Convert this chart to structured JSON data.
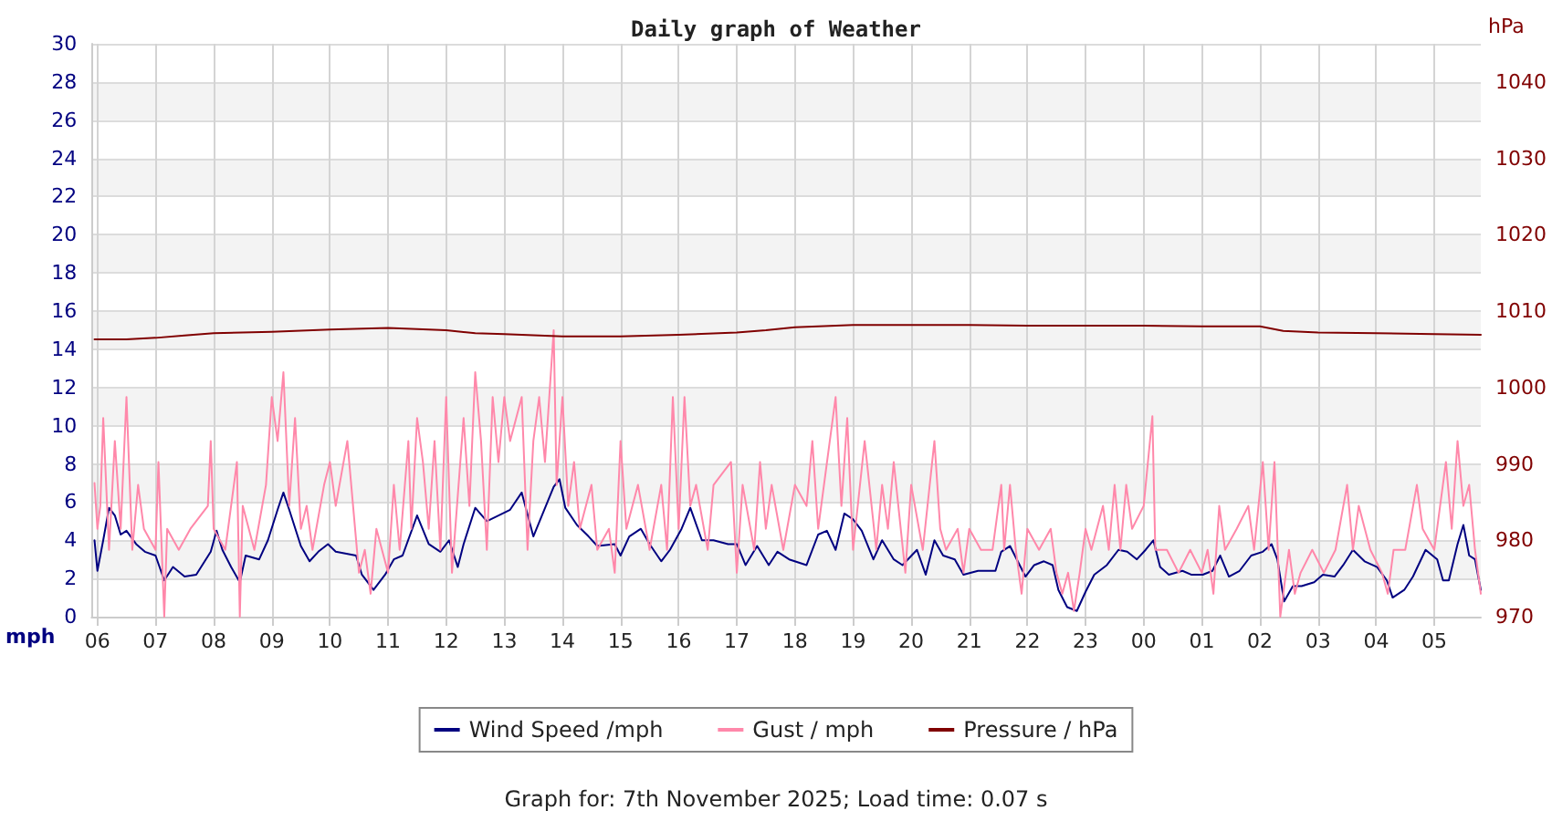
{
  "chart_data": {
    "type": "line",
    "title": "Daily graph of Weather",
    "ylabel": "mph",
    "y2label": "hPa",
    "annotations": [
      "Graph for: 7th November 2025; Load time: 0.07 s"
    ],
    "xlim": [
      "2025-11-06T05:54",
      "2025-11-07T05:48"
    ],
    "xticks": [
      {
        "value": "2025-11-06T06:00",
        "label": "06"
      },
      {
        "value": "2025-11-06T07:00",
        "label": "07"
      },
      {
        "value": "2025-11-06T08:00",
        "label": "08"
      },
      {
        "value": "2025-11-06T09:00",
        "label": "09"
      },
      {
        "value": "2025-11-06T10:00",
        "label": "10"
      },
      {
        "value": "2025-11-06T11:00",
        "label": "11"
      },
      {
        "value": "2025-11-06T12:00",
        "label": "12"
      },
      {
        "value": "2025-11-06T13:00",
        "label": "13"
      },
      {
        "value": "2025-11-06T14:00",
        "label": "14"
      },
      {
        "value": "2025-11-06T15:00",
        "label": "15"
      },
      {
        "value": "2025-11-06T16:00",
        "label": "16"
      },
      {
        "value": "2025-11-06T17:00",
        "label": "17"
      },
      {
        "value": "2025-11-06T18:00",
        "label": "18"
      },
      {
        "value": "2025-11-06T19:00",
        "label": "19"
      },
      {
        "value": "2025-11-06T20:00",
        "label": "20"
      },
      {
        "value": "2025-11-06T21:00",
        "label": "21"
      },
      {
        "value": "2025-11-06T22:00",
        "label": "22"
      },
      {
        "value": "2025-11-06T23:00",
        "label": "23"
      },
      {
        "value": "2025-11-07T00:00",
        "label": "00"
      },
      {
        "value": "2025-11-07T01:00",
        "label": "01"
      },
      {
        "value": "2025-11-07T02:00",
        "label": "02"
      },
      {
        "value": "2025-11-07T03:00",
        "label": "03"
      },
      {
        "value": "2025-11-07T04:00",
        "label": "04"
      },
      {
        "value": "2025-11-07T05:00",
        "label": "05"
      }
    ],
    "ylim": [
      0,
      30
    ],
    "yticks": [
      0,
      2,
      4,
      6,
      8,
      10,
      12,
      14,
      16,
      18,
      20,
      22,
      24,
      26,
      28,
      30
    ],
    "y2lim": [
      970,
      1045
    ],
    "y2ticks": [
      970,
      980,
      990,
      1000,
      1010,
      1020,
      1030,
      1040
    ],
    "grid": true,
    "legend": "bottom",
    "marker": "none",
    "line_style": "solid",
    "series": [
      {
        "name": "Wind Speed /mph",
        "color": "#000080",
        "x": [
          "2025-11-06T05:57",
          "2025-11-06T06:00",
          "2025-11-06T06:06",
          "2025-11-06T06:12",
          "2025-11-06T06:18",
          "2025-11-06T06:24",
          "2025-11-06T06:30",
          "2025-11-06T06:40",
          "2025-11-06T06:49",
          "2025-11-06T07:00",
          "2025-11-06T07:09",
          "2025-11-06T07:18",
          "2025-11-06T07:30",
          "2025-11-06T07:42",
          "2025-11-06T07:57",
          "2025-11-06T08:03",
          "2025-11-06T08:09",
          "2025-11-06T08:18",
          "2025-11-06T08:27",
          "2025-11-06T08:33",
          "2025-11-06T08:47",
          "2025-11-06T08:56",
          "2025-11-06T09:06",
          "2025-11-06T09:12",
          "2025-11-06T09:18",
          "2025-11-06T09:30",
          "2025-11-06T09:39",
          "2025-11-06T09:48",
          "2025-11-06T09:58",
          "2025-11-06T10:06",
          "2025-11-06T10:27",
          "2025-11-06T10:33",
          "2025-11-06T10:45",
          "2025-11-06T10:57",
          "2025-11-06T11:06",
          "2025-11-06T11:15",
          "2025-11-06T11:30",
          "2025-11-06T11:42",
          "2025-11-06T11:54",
          "2025-11-06T12:03",
          "2025-11-06T12:12",
          "2025-11-06T12:18",
          "2025-11-06T12:30",
          "2025-11-06T12:42",
          "2025-11-06T12:54",
          "2025-11-06T13:06",
          "2025-11-06T13:18",
          "2025-11-06T13:30",
          "2025-11-06T13:51",
          "2025-11-06T13:57",
          "2025-11-06T14:03",
          "2025-11-06T14:15",
          "2025-11-06T14:27",
          "2025-11-06T14:36",
          "2025-11-06T14:54",
          "2025-11-06T15:00",
          "2025-11-06T15:09",
          "2025-11-06T15:21",
          "2025-11-06T15:30",
          "2025-11-06T15:42",
          "2025-11-06T15:51",
          "2025-11-06T16:03",
          "2025-11-06T16:12",
          "2025-11-06T16:24",
          "2025-11-06T16:36",
          "2025-11-06T16:51",
          "2025-11-06T17:00",
          "2025-11-06T17:09",
          "2025-11-06T17:21",
          "2025-11-06T17:33",
          "2025-11-06T17:42",
          "2025-11-06T17:54",
          "2025-11-06T18:12",
          "2025-11-06T18:24",
          "2025-11-06T18:33",
          "2025-11-06T18:42",
          "2025-11-06T18:51",
          "2025-11-06T19:00",
          "2025-11-06T19:09",
          "2025-11-06T19:21",
          "2025-11-06T19:30",
          "2025-11-06T19:42",
          "2025-11-06T19:51",
          "2025-11-06T20:06",
          "2025-11-06T20:15",
          "2025-11-06T20:24",
          "2025-11-06T20:33",
          "2025-11-06T20:45",
          "2025-11-06T20:54",
          "2025-11-06T21:09",
          "2025-11-06T21:27",
          "2025-11-06T21:33",
          "2025-11-06T21:42",
          "2025-11-06T21:52",
          "2025-11-06T21:58",
          "2025-11-06T22:07",
          "2025-11-06T22:17",
          "2025-11-06T22:26",
          "2025-11-06T22:32",
          "2025-11-06T22:41",
          "2025-11-06T22:51",
          "2025-11-06T23:00",
          "2025-11-06T23:09",
          "2025-11-06T23:22",
          "2025-11-06T23:34",
          "2025-11-06T23:43",
          "2025-11-06T23:53",
          "2025-11-07T00:02",
          "2025-11-07T00:10",
          "2025-11-07T00:17",
          "2025-11-07T00:26",
          "2025-11-07T00:40",
          "2025-11-07T00:49",
          "2025-11-07T01:01",
          "2025-11-07T01:11",
          "2025-11-07T01:19",
          "2025-11-07T01:28",
          "2025-11-07T01:39",
          "2025-11-07T01:51",
          "2025-11-07T02:03",
          "2025-11-07T02:12",
          "2025-11-07T02:18",
          "2025-11-07T02:25",
          "2025-11-07T02:34",
          "2025-11-07T02:43",
          "2025-11-07T02:56",
          "2025-11-07T03:05",
          "2025-11-07T03:17",
          "2025-11-07T03:26",
          "2025-11-07T03:36",
          "2025-11-07T03:48",
          "2025-11-07T04:01",
          "2025-11-07T04:11",
          "2025-11-07T04:17",
          "2025-11-07T04:29",
          "2025-11-07T04:38",
          "2025-11-07T04:51",
          "2025-11-07T05:03",
          "2025-11-07T05:09",
          "2025-11-07T05:15",
          "2025-11-07T05:24",
          "2025-11-07T05:30",
          "2025-11-07T05:36",
          "2025-11-07T05:42",
          "2025-11-07T05:48"
        ],
        "values": [
          4.0,
          2.4,
          4.0,
          5.7,
          5.3,
          4.3,
          4.5,
          3.8,
          3.4,
          3.2,
          1.9,
          2.6,
          2.1,
          2.2,
          3.4,
          4.5,
          3.5,
          2.6,
          1.8,
          3.2,
          3.0,
          4.0,
          5.6,
          6.5,
          5.6,
          3.7,
          2.9,
          3.4,
          3.8,
          3.4,
          3.2,
          2.2,
          1.4,
          2.2,
          3.0,
          3.2,
          5.3,
          3.8,
          3.4,
          4.0,
          2.6,
          3.8,
          5.7,
          5.0,
          5.3,
          5.6,
          6.5,
          4.2,
          6.8,
          7.2,
          5.7,
          4.8,
          4.2,
          3.7,
          3.8,
          3.2,
          4.2,
          4.6,
          3.8,
          2.9,
          3.5,
          4.6,
          5.7,
          4.0,
          4.0,
          3.8,
          3.8,
          2.7,
          3.7,
          2.7,
          3.4,
          3.0,
          2.7,
          4.3,
          4.5,
          3.5,
          5.4,
          5.1,
          4.5,
          3.0,
          4.0,
          3.0,
          2.7,
          3.5,
          2.2,
          4.0,
          3.2,
          3.0,
          2.2,
          2.4,
          2.4,
          3.4,
          3.7,
          2.7,
          2.1,
          2.7,
          2.9,
          2.7,
          1.4,
          0.5,
          0.3,
          1.3,
          2.2,
          2.7,
          3.5,
          3.4,
          3.0,
          3.5,
          4.0,
          2.6,
          2.2,
          2.4,
          2.2,
          2.2,
          2.4,
          3.2,
          2.1,
          2.4,
          3.2,
          3.4,
          3.8,
          3.0,
          0.8,
          1.6,
          1.6,
          1.8,
          2.2,
          2.1,
          2.7,
          3.5,
          2.9,
          2.6,
          1.9,
          1.0,
          1.4,
          2.1,
          3.5,
          3.0,
          1.9,
          1.9,
          3.8,
          4.8,
          3.2,
          3.0,
          1.4
        ]
      },
      {
        "name": "Gust / mph",
        "color": "#ff88aa",
        "x": [
          "2025-11-06T05:57",
          "2025-11-06T06:00",
          "2025-11-06T06:03",
          "2025-11-06T06:06",
          "2025-11-06T06:12",
          "2025-11-06T06:18",
          "2025-11-06T06:24",
          "2025-11-06T06:30",
          "2025-11-06T06:36",
          "2025-11-06T06:42",
          "2025-11-06T06:48",
          "2025-11-06T07:00",
          "2025-11-06T07:03",
          "2025-11-06T07:09",
          "2025-11-06T07:12",
          "2025-11-06T07:24",
          "2025-11-06T07:36",
          "2025-11-06T07:54",
          "2025-11-06T07:57",
          "2025-11-06T08:00",
          "2025-11-06T08:12",
          "2025-11-06T08:24",
          "2025-11-06T08:27",
          "2025-11-06T08:30",
          "2025-11-06T08:42",
          "2025-11-06T08:54",
          "2025-11-06T09:00",
          "2025-11-06T09:06",
          "2025-11-06T09:12",
          "2025-11-06T09:18",
          "2025-11-06T09:24",
          "2025-11-06T09:30",
          "2025-11-06T09:36",
          "2025-11-06T09:42",
          "2025-11-06T09:54",
          "2025-11-06T10:00",
          "2025-11-06T10:06",
          "2025-11-06T10:18",
          "2025-11-06T10:30",
          "2025-11-06T10:36",
          "2025-11-06T10:42",
          "2025-11-06T10:48",
          "2025-11-06T11:00",
          "2025-11-06T11:06",
          "2025-11-06T11:12",
          "2025-11-06T11:21",
          "2025-11-06T11:24",
          "2025-11-06T11:30",
          "2025-11-06T11:36",
          "2025-11-06T11:42",
          "2025-11-06T11:48",
          "2025-11-06T11:54",
          "2025-11-06T12:00",
          "2025-11-06T12:06",
          "2025-11-06T12:18",
          "2025-11-06T12:24",
          "2025-11-06T12:30",
          "2025-11-06T12:36",
          "2025-11-06T12:42",
          "2025-11-06T12:48",
          "2025-11-06T12:54",
          "2025-11-06T13:00",
          "2025-11-06T13:06",
          "2025-11-06T13:18",
          "2025-11-06T13:24",
          "2025-11-06T13:30",
          "2025-11-06T13:36",
          "2025-11-06T13:42",
          "2025-11-06T13:51",
          "2025-11-06T13:54",
          "2025-11-06T14:00",
          "2025-11-06T14:06",
          "2025-11-06T14:12",
          "2025-11-06T14:18",
          "2025-11-06T14:30",
          "2025-11-06T14:36",
          "2025-11-06T14:48",
          "2025-11-06T14:54",
          "2025-11-06T15:00",
          "2025-11-06T15:06",
          "2025-11-06T15:18",
          "2025-11-06T15:30",
          "2025-11-06T15:42",
          "2025-11-06T15:48",
          "2025-11-06T15:54",
          "2025-11-06T16:00",
          "2025-11-06T16:06",
          "2025-11-06T16:12",
          "2025-11-06T16:18",
          "2025-11-06T16:30",
          "2025-11-06T16:36",
          "2025-11-06T16:54",
          "2025-11-06T17:00",
          "2025-11-06T17:06",
          "2025-11-06T17:18",
          "2025-11-06T17:24",
          "2025-11-06T17:30",
          "2025-11-06T17:36",
          "2025-11-06T17:48",
          "2025-11-06T18:00",
          "2025-11-06T18:12",
          "2025-11-06T18:18",
          "2025-11-06T18:24",
          "2025-11-06T18:42",
          "2025-11-06T18:48",
          "2025-11-06T18:54",
          "2025-11-06T19:00",
          "2025-11-06T19:12",
          "2025-11-06T19:24",
          "2025-11-06T19:30",
          "2025-11-06T19:36",
          "2025-11-06T19:42",
          "2025-11-06T19:54",
          "2025-11-06T20:00",
          "2025-11-06T20:12",
          "2025-11-06T20:24",
          "2025-11-06T20:30",
          "2025-11-06T20:36",
          "2025-11-06T20:48",
          "2025-11-06T20:54",
          "2025-11-06T21:00",
          "2025-11-06T21:12",
          "2025-11-06T21:24",
          "2025-11-06T21:33",
          "2025-11-06T21:36",
          "2025-11-06T21:42",
          "2025-11-06T21:48",
          "2025-11-06T21:54",
          "2025-11-06T22:00",
          "2025-11-06T22:12",
          "2025-11-06T22:24",
          "2025-11-06T22:30",
          "2025-11-06T22:36",
          "2025-11-06T22:42",
          "2025-11-06T22:48",
          "2025-11-06T22:54",
          "2025-11-06T23:00",
          "2025-11-06T23:06",
          "2025-11-06T23:18",
          "2025-11-06T23:24",
          "2025-11-06T23:30",
          "2025-11-06T23:36",
          "2025-11-06T23:42",
          "2025-11-06T23:48",
          "2025-11-07T00:00",
          "2025-11-07T00:09",
          "2025-11-07T00:12",
          "2025-11-07T00:24",
          "2025-11-07T00:36",
          "2025-11-07T00:48",
          "2025-11-07T01:00",
          "2025-11-07T01:06",
          "2025-11-07T01:12",
          "2025-11-07T01:18",
          "2025-11-07T01:24",
          "2025-11-07T01:36",
          "2025-11-07T01:48",
          "2025-11-07T01:54",
          "2025-11-07T02:03",
          "2025-11-07T02:09",
          "2025-11-07T02:15",
          "2025-11-07T02:21",
          "2025-11-07T02:30",
          "2025-11-07T02:36",
          "2025-11-07T02:42",
          "2025-11-07T02:54",
          "2025-11-07T03:06",
          "2025-11-07T03:18",
          "2025-11-07T03:30",
          "2025-11-07T03:36",
          "2025-11-07T03:42",
          "2025-11-07T03:54",
          "2025-11-07T04:06",
          "2025-11-07T04:12",
          "2025-11-07T04:18",
          "2025-11-07T04:30",
          "2025-11-07T04:42",
          "2025-11-07T04:48",
          "2025-11-07T05:00",
          "2025-11-07T05:12",
          "2025-11-07T05:18",
          "2025-11-07T05:24",
          "2025-11-07T05:30",
          "2025-11-07T05:36",
          "2025-11-07T05:42",
          "2025-11-07T05:48"
        ],
        "values": [
          7.0,
          4.6,
          5.8,
          10.4,
          3.5,
          9.2,
          4.6,
          11.5,
          3.5,
          6.9,
          4.6,
          3.5,
          8.1,
          0,
          4.6,
          3.5,
          4.6,
          5.8,
          9.2,
          4.6,
          3.5,
          8.1,
          0,
          5.8,
          3.5,
          6.9,
          11.5,
          9.2,
          12.8,
          5.8,
          10.4,
          4.6,
          5.8,
          3.5,
          6.9,
          8.1,
          5.8,
          9.2,
          2.3,
          3.5,
          1.2,
          4.6,
          2.3,
          6.9,
          3.5,
          9.2,
          4.6,
          10.4,
          8.1,
          4.6,
          9.2,
          3.5,
          11.5,
          2.3,
          10.4,
          5.8,
          12.8,
          9.2,
          3.5,
          11.5,
          8.1,
          11.5,
          9.2,
          11.5,
          3.5,
          9.2,
          11.5,
          8.1,
          15.0,
          6.9,
          11.5,
          5.8,
          8.1,
          4.6,
          6.9,
          3.5,
          4.6,
          2.3,
          9.2,
          4.6,
          6.9,
          3.5,
          6.9,
          3.5,
          11.5,
          4.6,
          11.5,
          5.8,
          6.9,
          3.5,
          6.9,
          8.1,
          2.3,
          6.9,
          3.5,
          8.1,
          4.6,
          6.9,
          3.5,
          6.9,
          5.8,
          9.2,
          4.6,
          11.5,
          5.8,
          10.4,
          3.5,
          9.2,
          3.5,
          6.9,
          4.6,
          8.1,
          2.3,
          6.9,
          3.5,
          9.2,
          4.6,
          3.5,
          4.6,
          2.3,
          4.6,
          3.5,
          3.5,
          6.9,
          3.5,
          6.9,
          3.5,
          1.2,
          4.6,
          3.5,
          4.6,
          2.3,
          1.2,
          2.3,
          0.3,
          2.3,
          4.6,
          3.5,
          5.8,
          3.5,
          6.9,
          3.5,
          6.9,
          4.6,
          5.8,
          10.5,
          3.5,
          3.5,
          2.3,
          3.5,
          2.3,
          3.5,
          1.2,
          5.8,
          3.5,
          4.6,
          5.8,
          3.5,
          8.1,
          3.5,
          8.1,
          0,
          3.5,
          1.2,
          2.3,
          3.5,
          2.3,
          3.5,
          6.9,
          3.5,
          5.8,
          3.5,
          2.3,
          1.2,
          3.5,
          3.5,
          6.9,
          4.6,
          3.5,
          8.1,
          4.6,
          9.2,
          5.8,
          6.9,
          3.5,
          1.2
        ]
      },
      {
        "name": "Pressure / hPa",
        "color": "#800000",
        "axis": "y2",
        "x": [
          "2025-11-06T05:57",
          "2025-11-06T06:30",
          "2025-11-06T07:00",
          "2025-11-06T07:30",
          "2025-11-06T08:00",
          "2025-11-06T09:00",
          "2025-11-06T10:00",
          "2025-11-06T11:00",
          "2025-11-06T12:00",
          "2025-11-06T12:30",
          "2025-11-06T13:00",
          "2025-11-06T14:00",
          "2025-11-06T15:00",
          "2025-11-06T16:00",
          "2025-11-06T17:00",
          "2025-11-06T17:30",
          "2025-11-06T18:00",
          "2025-11-06T19:00",
          "2025-11-06T20:00",
          "2025-11-06T21:00",
          "2025-11-06T22:00",
          "2025-11-07T00:00",
          "2025-11-07T01:00",
          "2025-11-07T02:00",
          "2025-11-07T02:24",
          "2025-11-07T03:00",
          "2025-11-07T04:00",
          "2025-11-07T05:00",
          "2025-11-07T05:48"
        ],
        "values": [
          1006.3,
          1006.3,
          1006.5,
          1006.8,
          1007.1,
          1007.3,
          1007.6,
          1007.8,
          1007.5,
          1007.1,
          1007.0,
          1006.7,
          1006.7,
          1006.9,
          1007.2,
          1007.5,
          1007.9,
          1008.2,
          1008.2,
          1008.2,
          1008.1,
          1008.1,
          1008.0,
          1008.0,
          1007.4,
          1007.2,
          1007.1,
          1007.0,
          1006.9
        ]
      }
    ]
  }
}
